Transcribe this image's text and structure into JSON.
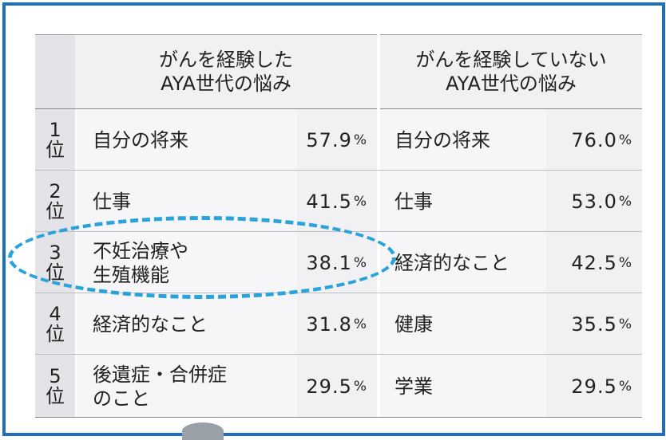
{
  "headers": {
    "experienced": [
      "がんを経験した",
      "AYA世代の悩み"
    ],
    "not_experienced": [
      "がんを経験していない",
      "AYA世代の悩み"
    ]
  },
  "rows": [
    {
      "rank_num": "1",
      "rank_suffix": "位",
      "exp_item": [
        "自分の将来"
      ],
      "exp_value": "57.9",
      "non_item": "自分の将来",
      "non_value": "76.0"
    },
    {
      "rank_num": "2",
      "rank_suffix": "位",
      "exp_item": [
        "仕事"
      ],
      "exp_value": "41.5",
      "non_item": "仕事",
      "non_value": "53.0"
    },
    {
      "rank_num": "3",
      "rank_suffix": "位",
      "exp_item": [
        "不妊治療や",
        "生殖機能"
      ],
      "exp_value": "38.1",
      "non_item": "経済的なこと",
      "non_value": "42.5"
    },
    {
      "rank_num": "4",
      "rank_suffix": "位",
      "exp_item": [
        "経済的なこと"
      ],
      "exp_value": "31.8",
      "non_item": "健康",
      "non_value": "35.5"
    },
    {
      "rank_num": "5",
      "rank_suffix": "位",
      "exp_item": [
        "後遺症・合併症",
        "のこと"
      ],
      "exp_value": "29.5",
      "non_item": "学業",
      "non_value": "29.5"
    }
  ],
  "unit": "%",
  "colors": {
    "frame": "#1f6fc1",
    "highlight": "#2aa3dd"
  }
}
